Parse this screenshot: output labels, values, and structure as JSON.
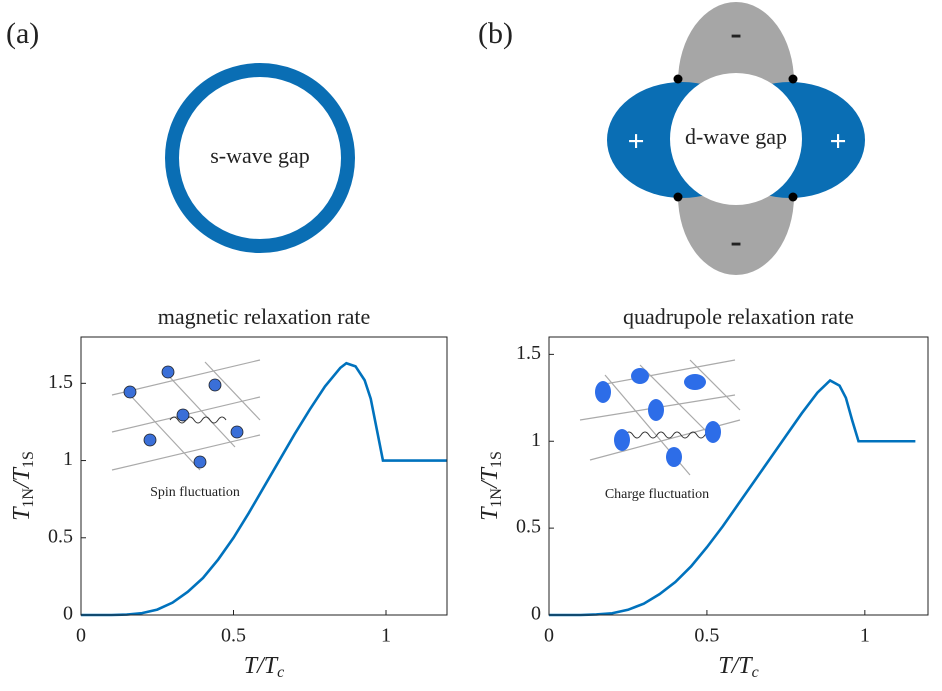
{
  "panels": [
    {
      "tag": "(a)",
      "gap_label": "s-wave gap"
    },
    {
      "tag": "(b)",
      "gap_label": "d-wave gap",
      "lobe_signs": [
        "+",
        "+",
        "-",
        "-"
      ]
    }
  ],
  "chart_data": [
    {
      "type": "line",
      "title": "magnetic relaxation rate",
      "xlabel": [
        "T/T",
        "c"
      ],
      "ylabel": [
        "T",
        "1N",
        "/T",
        "1S"
      ],
      "inset_label": "Spin fluctuation",
      "x": [
        0,
        0.1,
        0.15,
        0.2,
        0.25,
        0.3,
        0.35,
        0.4,
        0.45,
        0.5,
        0.55,
        0.6,
        0.65,
        0.7,
        0.75,
        0.8,
        0.85,
        0.87,
        0.9,
        0.93,
        0.95,
        0.97,
        0.99,
        1.0,
        1.1,
        1.2
      ],
      "series": [
        {
          "color": "#0072bd",
          "values": [
            0,
            0,
            0.003,
            0.012,
            0.035,
            0.08,
            0.15,
            0.24,
            0.36,
            0.5,
            0.66,
            0.83,
            1.0,
            1.17,
            1.33,
            1.48,
            1.6,
            1.63,
            1.61,
            1.52,
            1.4,
            1.2,
            1.0,
            1.0,
            1.0,
            1.0
          ]
        }
      ],
      "xlim": [
        0,
        1.2
      ],
      "xticks": [
        0,
        0.5,
        1
      ],
      "ylim": [
        0,
        1.8
      ],
      "yticks": [
        0,
        0.5,
        1,
        1.5
      ]
    },
    {
      "type": "line",
      "title": "quadrupole relaxation rate",
      "xlabel": [
        "T/T",
        "c"
      ],
      "ylabel": [
        "T",
        "1N",
        "/T",
        "1S"
      ],
      "inset_label": "Charge fluctuation",
      "x": [
        0,
        0.1,
        0.15,
        0.2,
        0.25,
        0.3,
        0.35,
        0.4,
        0.45,
        0.5,
        0.55,
        0.6,
        0.65,
        0.7,
        0.75,
        0.8,
        0.85,
        0.89,
        0.92,
        0.94,
        0.96,
        0.98,
        1.0,
        1.1,
        1.16
      ],
      "series": [
        {
          "color": "#0072bd",
          "values": [
            0,
            0,
            0.003,
            0.01,
            0.03,
            0.065,
            0.12,
            0.19,
            0.28,
            0.39,
            0.51,
            0.64,
            0.77,
            0.9,
            1.03,
            1.16,
            1.28,
            1.35,
            1.32,
            1.25,
            1.12,
            1.0,
            1.0,
            1.0,
            1.0
          ]
        }
      ],
      "xlim": [
        0,
        1.2
      ],
      "xticks": [
        0,
        0.5,
        1
      ],
      "ylim": [
        0,
        1.6
      ],
      "yticks": [
        0,
        0.5,
        1,
        1.5
      ]
    }
  ]
}
